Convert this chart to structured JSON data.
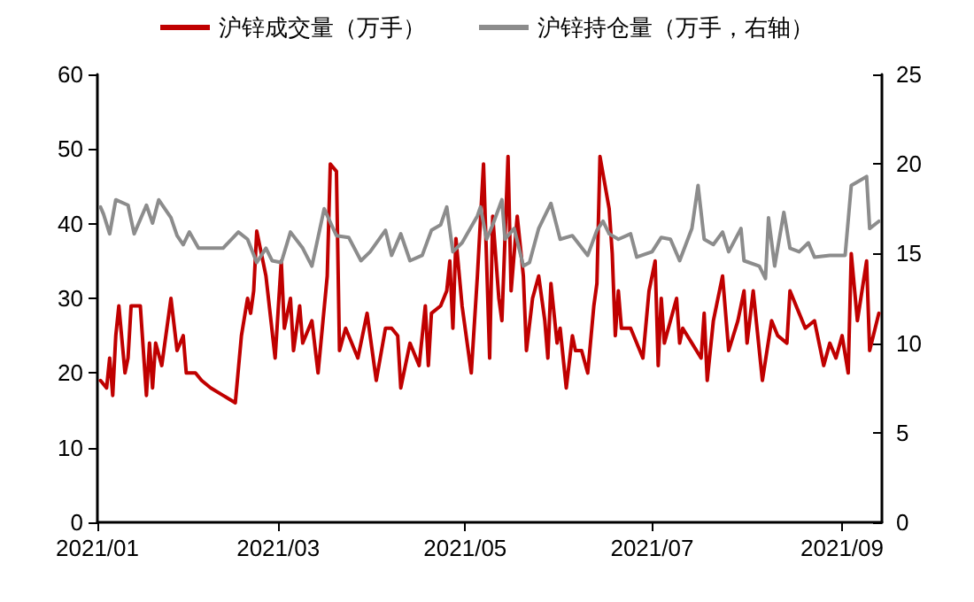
{
  "chart_data": {
    "type": "line",
    "legend": "top",
    "grid": false,
    "marker": "none",
    "line_style": "solid",
    "xlim": [
      "2021-01-01",
      "2021-09-14"
    ],
    "xticks": [
      {
        "value": "2021-01-01",
        "label": "2021/01"
      },
      {
        "value": "2021-03-01",
        "label": "2021/03"
      },
      {
        "value": "2021-05-01",
        "label": "2021/05"
      },
      {
        "value": "2021-07-01",
        "label": "2021/07"
      },
      {
        "value": "2021-09-01",
        "label": "2021/09"
      }
    ],
    "ylim": [
      0,
      60
    ],
    "yticks": [
      0,
      10,
      20,
      30,
      40,
      50,
      60
    ],
    "y2lim": [
      0,
      25
    ],
    "y2ticks": [
      0,
      5,
      10,
      15,
      20,
      25
    ],
    "series": [
      {
        "name": "沪锌成交量（万手）",
        "color": "#c00000",
        "x": [
          "2021-01-02",
          "2021-01-04",
          "2021-01-05",
          "2021-01-06",
          "2021-01-07",
          "2021-01-08",
          "2021-01-10",
          "2021-01-11",
          "2021-01-12",
          "2021-01-15",
          "2021-01-17",
          "2021-01-18",
          "2021-01-19",
          "2021-01-20",
          "2021-01-22",
          "2021-01-25",
          "2021-01-27",
          "2021-01-29",
          "2021-01-30",
          "2021-02-02",
          "2021-02-04",
          "2021-02-07",
          "2021-02-11",
          "2021-02-15",
          "2021-02-17",
          "2021-02-19",
          "2021-02-20",
          "2021-02-21",
          "2021-02-22",
          "2021-02-25",
          "2021-02-28",
          "2021-03-02",
          "2021-03-03",
          "2021-03-05",
          "2021-03-06",
          "2021-03-08",
          "2021-03-09",
          "2021-03-12",
          "2021-03-14",
          "2021-03-17",
          "2021-03-18",
          "2021-03-20",
          "2021-03-21",
          "2021-03-23",
          "2021-03-25",
          "2021-03-27",
          "2021-03-30",
          "2021-04-02",
          "2021-04-05",
          "2021-04-07",
          "2021-04-09",
          "2021-04-10",
          "2021-04-13",
          "2021-04-16",
          "2021-04-18",
          "2021-04-19",
          "2021-04-20",
          "2021-04-23",
          "2021-04-25",
          "2021-04-26",
          "2021-04-27",
          "2021-04-28",
          "2021-04-30",
          "2021-05-03",
          "2021-05-05",
          "2021-05-07",
          "2021-05-09",
          "2021-05-10",
          "2021-05-12",
          "2021-05-13",
          "2021-05-15",
          "2021-05-16",
          "2021-05-18",
          "2021-05-20",
          "2021-05-21",
          "2021-05-23",
          "2021-05-25",
          "2021-05-27",
          "2021-05-28",
          "2021-05-29",
          "2021-05-31",
          "2021-06-01",
          "2021-06-03",
          "2021-06-05",
          "2021-06-06",
          "2021-06-08",
          "2021-06-10",
          "2021-06-12",
          "2021-06-13",
          "2021-06-14",
          "2021-06-17",
          "2021-06-18",
          "2021-06-19",
          "2021-06-20",
          "2021-06-21",
          "2021-06-24",
          "2021-06-26",
          "2021-06-28",
          "2021-06-30",
          "2021-07-02",
          "2021-07-03",
          "2021-07-04",
          "2021-07-05",
          "2021-07-07",
          "2021-07-09",
          "2021-07-10",
          "2021-07-11",
          "2021-07-14",
          "2021-07-17",
          "2021-07-18",
          "2021-07-19",
          "2021-07-21",
          "2021-07-24",
          "2021-07-26",
          "2021-07-29",
          "2021-07-31",
          "2021-08-01",
          "2021-08-03",
          "2021-08-06",
          "2021-08-09",
          "2021-08-11",
          "2021-08-14",
          "2021-08-15",
          "2021-08-18",
          "2021-08-20",
          "2021-08-23",
          "2021-08-26",
          "2021-08-28",
          "2021-08-30",
          "2021-09-01",
          "2021-09-03",
          "2021-09-04",
          "2021-09-06",
          "2021-09-09",
          "2021-09-10",
          "2021-09-13"
        ],
        "values": [
          19,
          18,
          22,
          17,
          25,
          29,
          20,
          22,
          29,
          29,
          17,
          24,
          18,
          24,
          21,
          30,
          23,
          25,
          20,
          20,
          19,
          18,
          17,
          16,
          25,
          30,
          28,
          31,
          39,
          33,
          22,
          35,
          26,
          30,
          23,
          29,
          24,
          27,
          20,
          33,
          48,
          47,
          23,
          26,
          24,
          22,
          28,
          19,
          26,
          26,
          25,
          18,
          24,
          21,
          29,
          21,
          28,
          29,
          31,
          35,
          26,
          38,
          29,
          20,
          33,
          48,
          22,
          41,
          30,
          27,
          49,
          31,
          41,
          33,
          23,
          30,
          33,
          27,
          22,
          32,
          24,
          26,
          18,
          25,
          23,
          23,
          20,
          29,
          32,
          49,
          42,
          36,
          25,
          31,
          26,
          26,
          24,
          22,
          31,
          35,
          21,
          30,
          24,
          27,
          30,
          24,
          26,
          24,
          22,
          28,
          19,
          27,
          33,
          23,
          27,
          31,
          24,
          31,
          19,
          27,
          25,
          24,
          31,
          28,
          26,
          27,
          21,
          24,
          22,
          25,
          20,
          36,
          27,
          35,
          23,
          28
        ]
      },
      {
        "name": "沪锌持仓量（万手，右轴）",
        "color": "#8c8c8c",
        "axis": "y2",
        "x": [
          "2021-01-02",
          "2021-01-03",
          "2021-01-05",
          "2021-01-07",
          "2021-01-11",
          "2021-01-13",
          "2021-01-17",
          "2021-01-19",
          "2021-01-21",
          "2021-01-25",
          "2021-01-27",
          "2021-01-29",
          "2021-01-31",
          "2021-02-03",
          "2021-02-11",
          "2021-02-16",
          "2021-02-19",
          "2021-02-22",
          "2021-02-25",
          "2021-02-27",
          "2021-03-02",
          "2021-03-05",
          "2021-03-09",
          "2021-03-12",
          "2021-03-16",
          "2021-03-20",
          "2021-03-24",
          "2021-03-28",
          "2021-03-31",
          "2021-04-05",
          "2021-04-07",
          "2021-04-10",
          "2021-04-13",
          "2021-04-17",
          "2021-04-20",
          "2021-04-23",
          "2021-04-25",
          "2021-04-27",
          "2021-04-30",
          "2021-05-05",
          "2021-05-06",
          "2021-05-08",
          "2021-05-10",
          "2021-05-13",
          "2021-05-14",
          "2021-05-17",
          "2021-05-20",
          "2021-05-22",
          "2021-05-25",
          "2021-05-29",
          "2021-06-01",
          "2021-06-05",
          "2021-06-10",
          "2021-06-13",
          "2021-06-15",
          "2021-06-17",
          "2021-06-20",
          "2021-06-24",
          "2021-06-26",
          "2021-07-01",
          "2021-07-04",
          "2021-07-07",
          "2021-07-10",
          "2021-07-14",
          "2021-07-16",
          "2021-07-18",
          "2021-07-21",
          "2021-07-24",
          "2021-07-26",
          "2021-07-30",
          "2021-07-31",
          "2021-08-05",
          "2021-08-07",
          "2021-08-08",
          "2021-08-10",
          "2021-08-13",
          "2021-08-15",
          "2021-08-18",
          "2021-08-21",
          "2021-08-23",
          "2021-08-28",
          "2021-09-02",
          "2021-09-04",
          "2021-09-07",
          "2021-09-09",
          "2021-09-10",
          "2021-09-13"
        ],
        "values": [
          17.6,
          17.2,
          16.1,
          18,
          17.7,
          16.1,
          17.7,
          16.7,
          18,
          17,
          16,
          15.5,
          16.2,
          15.3,
          15.3,
          16.2,
          15.8,
          14.5,
          15.3,
          14.6,
          14.5,
          16.2,
          15.3,
          14.3,
          17.5,
          16,
          15.9,
          14.6,
          15.1,
          16.3,
          14.9,
          16.1,
          14.6,
          14.9,
          16.3,
          16.6,
          17.6,
          15.1,
          15.6,
          17.1,
          17.6,
          15.8,
          16.6,
          18,
          15.8,
          16.4,
          14.3,
          14.5,
          16.4,
          17.8,
          15.8,
          16,
          14.9,
          16.3,
          16.8,
          16.1,
          15.8,
          16.1,
          14.8,
          15.1,
          15.9,
          15.8,
          14.6,
          16.4,
          18.8,
          15.8,
          15.5,
          16.2,
          15.1,
          16.4,
          14.6,
          14.3,
          13.6,
          17,
          14.3,
          17.3,
          15.3,
          15.1,
          15.6,
          14.8,
          14.9,
          14.9,
          18.8,
          19.1,
          19.3,
          16.4,
          16.8
        ]
      }
    ]
  }
}
